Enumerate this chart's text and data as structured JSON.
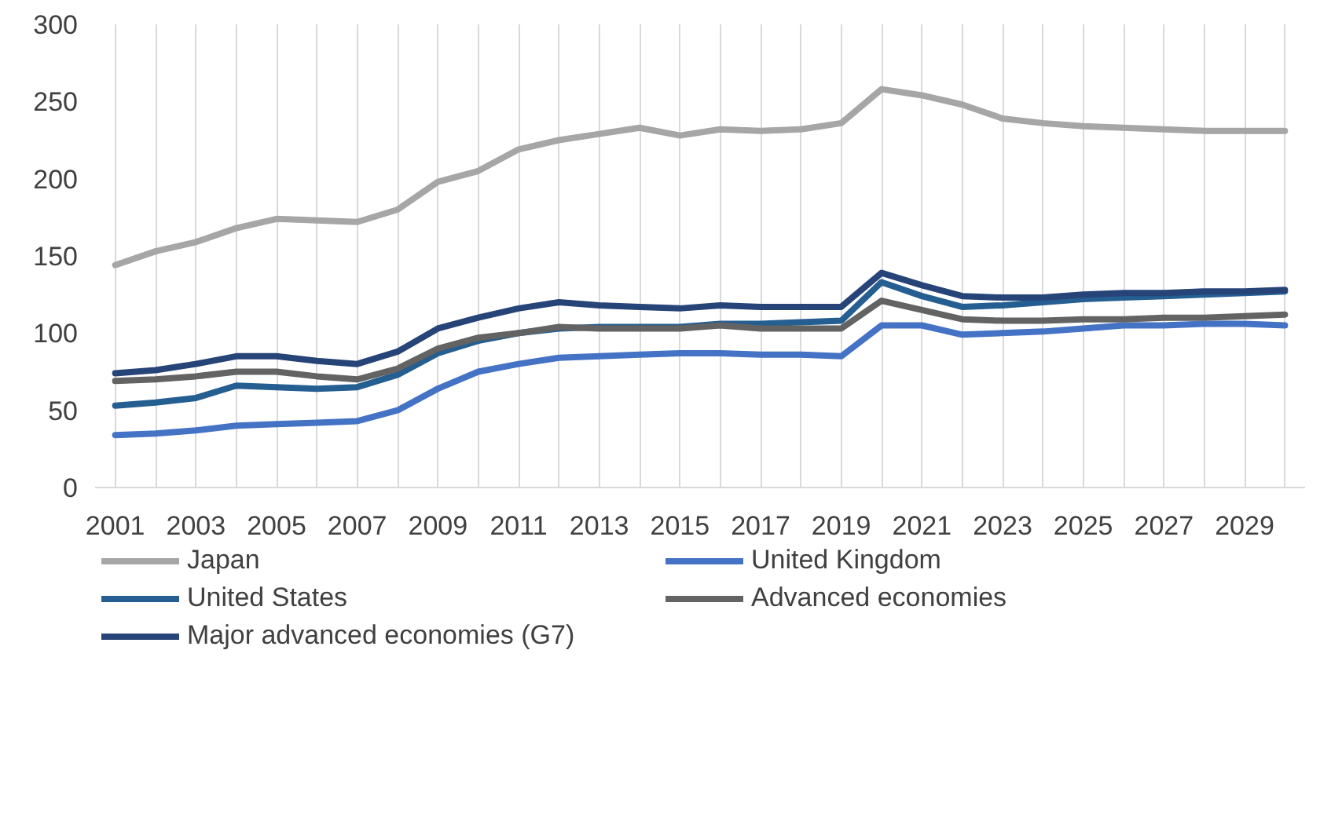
{
  "chart_data": {
    "type": "line",
    "categories": [
      "2001",
      null,
      "2003",
      null,
      "2005",
      null,
      "2007",
      null,
      "2009",
      null,
      "2011",
      null,
      "2013",
      null,
      "2015",
      null,
      "2017",
      null,
      "2019",
      null,
      "2021",
      null,
      "2023",
      null,
      "2025",
      null,
      "2027",
      null,
      "2029",
      null
    ],
    "ylim": [
      0,
      300
    ],
    "yticks": [
      0,
      50,
      100,
      150,
      200,
      250,
      300
    ],
    "grid": "x",
    "legend": "bottom",
    "marker": "none",
    "line_style": "solid",
    "series": [
      {
        "name": "Japan",
        "color": "#a6a6a6",
        "values": [
          144,
          153,
          159,
          168,
          174,
          173,
          172,
          180,
          198,
          205,
          219,
          225,
          229,
          233,
          228,
          232,
          231,
          232,
          236,
          258,
          254,
          248,
          239,
          236,
          234,
          233,
          232,
          231,
          231,
          231
        ]
      },
      {
        "name": "United Kingdom",
        "color": "#4472c4",
        "values": [
          34,
          35,
          37,
          40,
          41,
          42,
          43,
          50,
          64,
          75,
          80,
          84,
          85,
          86,
          87,
          87,
          86,
          86,
          85,
          105,
          105,
          99,
          100,
          101,
          103,
          105,
          105,
          106,
          106,
          105
        ]
      },
      {
        "name": "United States",
        "color": "#255e91",
        "values": [
          53,
          55,
          58,
          66,
          65,
          64,
          65,
          73,
          87,
          95,
          100,
          103,
          104,
          104,
          104,
          106,
          106,
          107,
          108,
          133,
          124,
          117,
          118,
          120,
          122,
          123,
          124,
          125,
          126,
          127
        ]
      },
      {
        "name": "Advanced economies",
        "color": "#636363",
        "values": [
          69,
          70,
          72,
          75,
          75,
          72,
          70,
          77,
          90,
          97,
          100,
          104,
          103,
          103,
          103,
          105,
          103,
          103,
          103,
          121,
          115,
          109,
          108,
          108,
          109,
          109,
          110,
          110,
          111,
          112
        ]
      },
      {
        "name": "Major advanced economies (G7)",
        "color": "#264478",
        "values": [
          74,
          76,
          80,
          85,
          85,
          82,
          80,
          88,
          103,
          110,
          116,
          120,
          118,
          117,
          116,
          118,
          117,
          117,
          117,
          139,
          131,
          124,
          123,
          123,
          125,
          126,
          126,
          127,
          127,
          128
        ]
      }
    ]
  }
}
